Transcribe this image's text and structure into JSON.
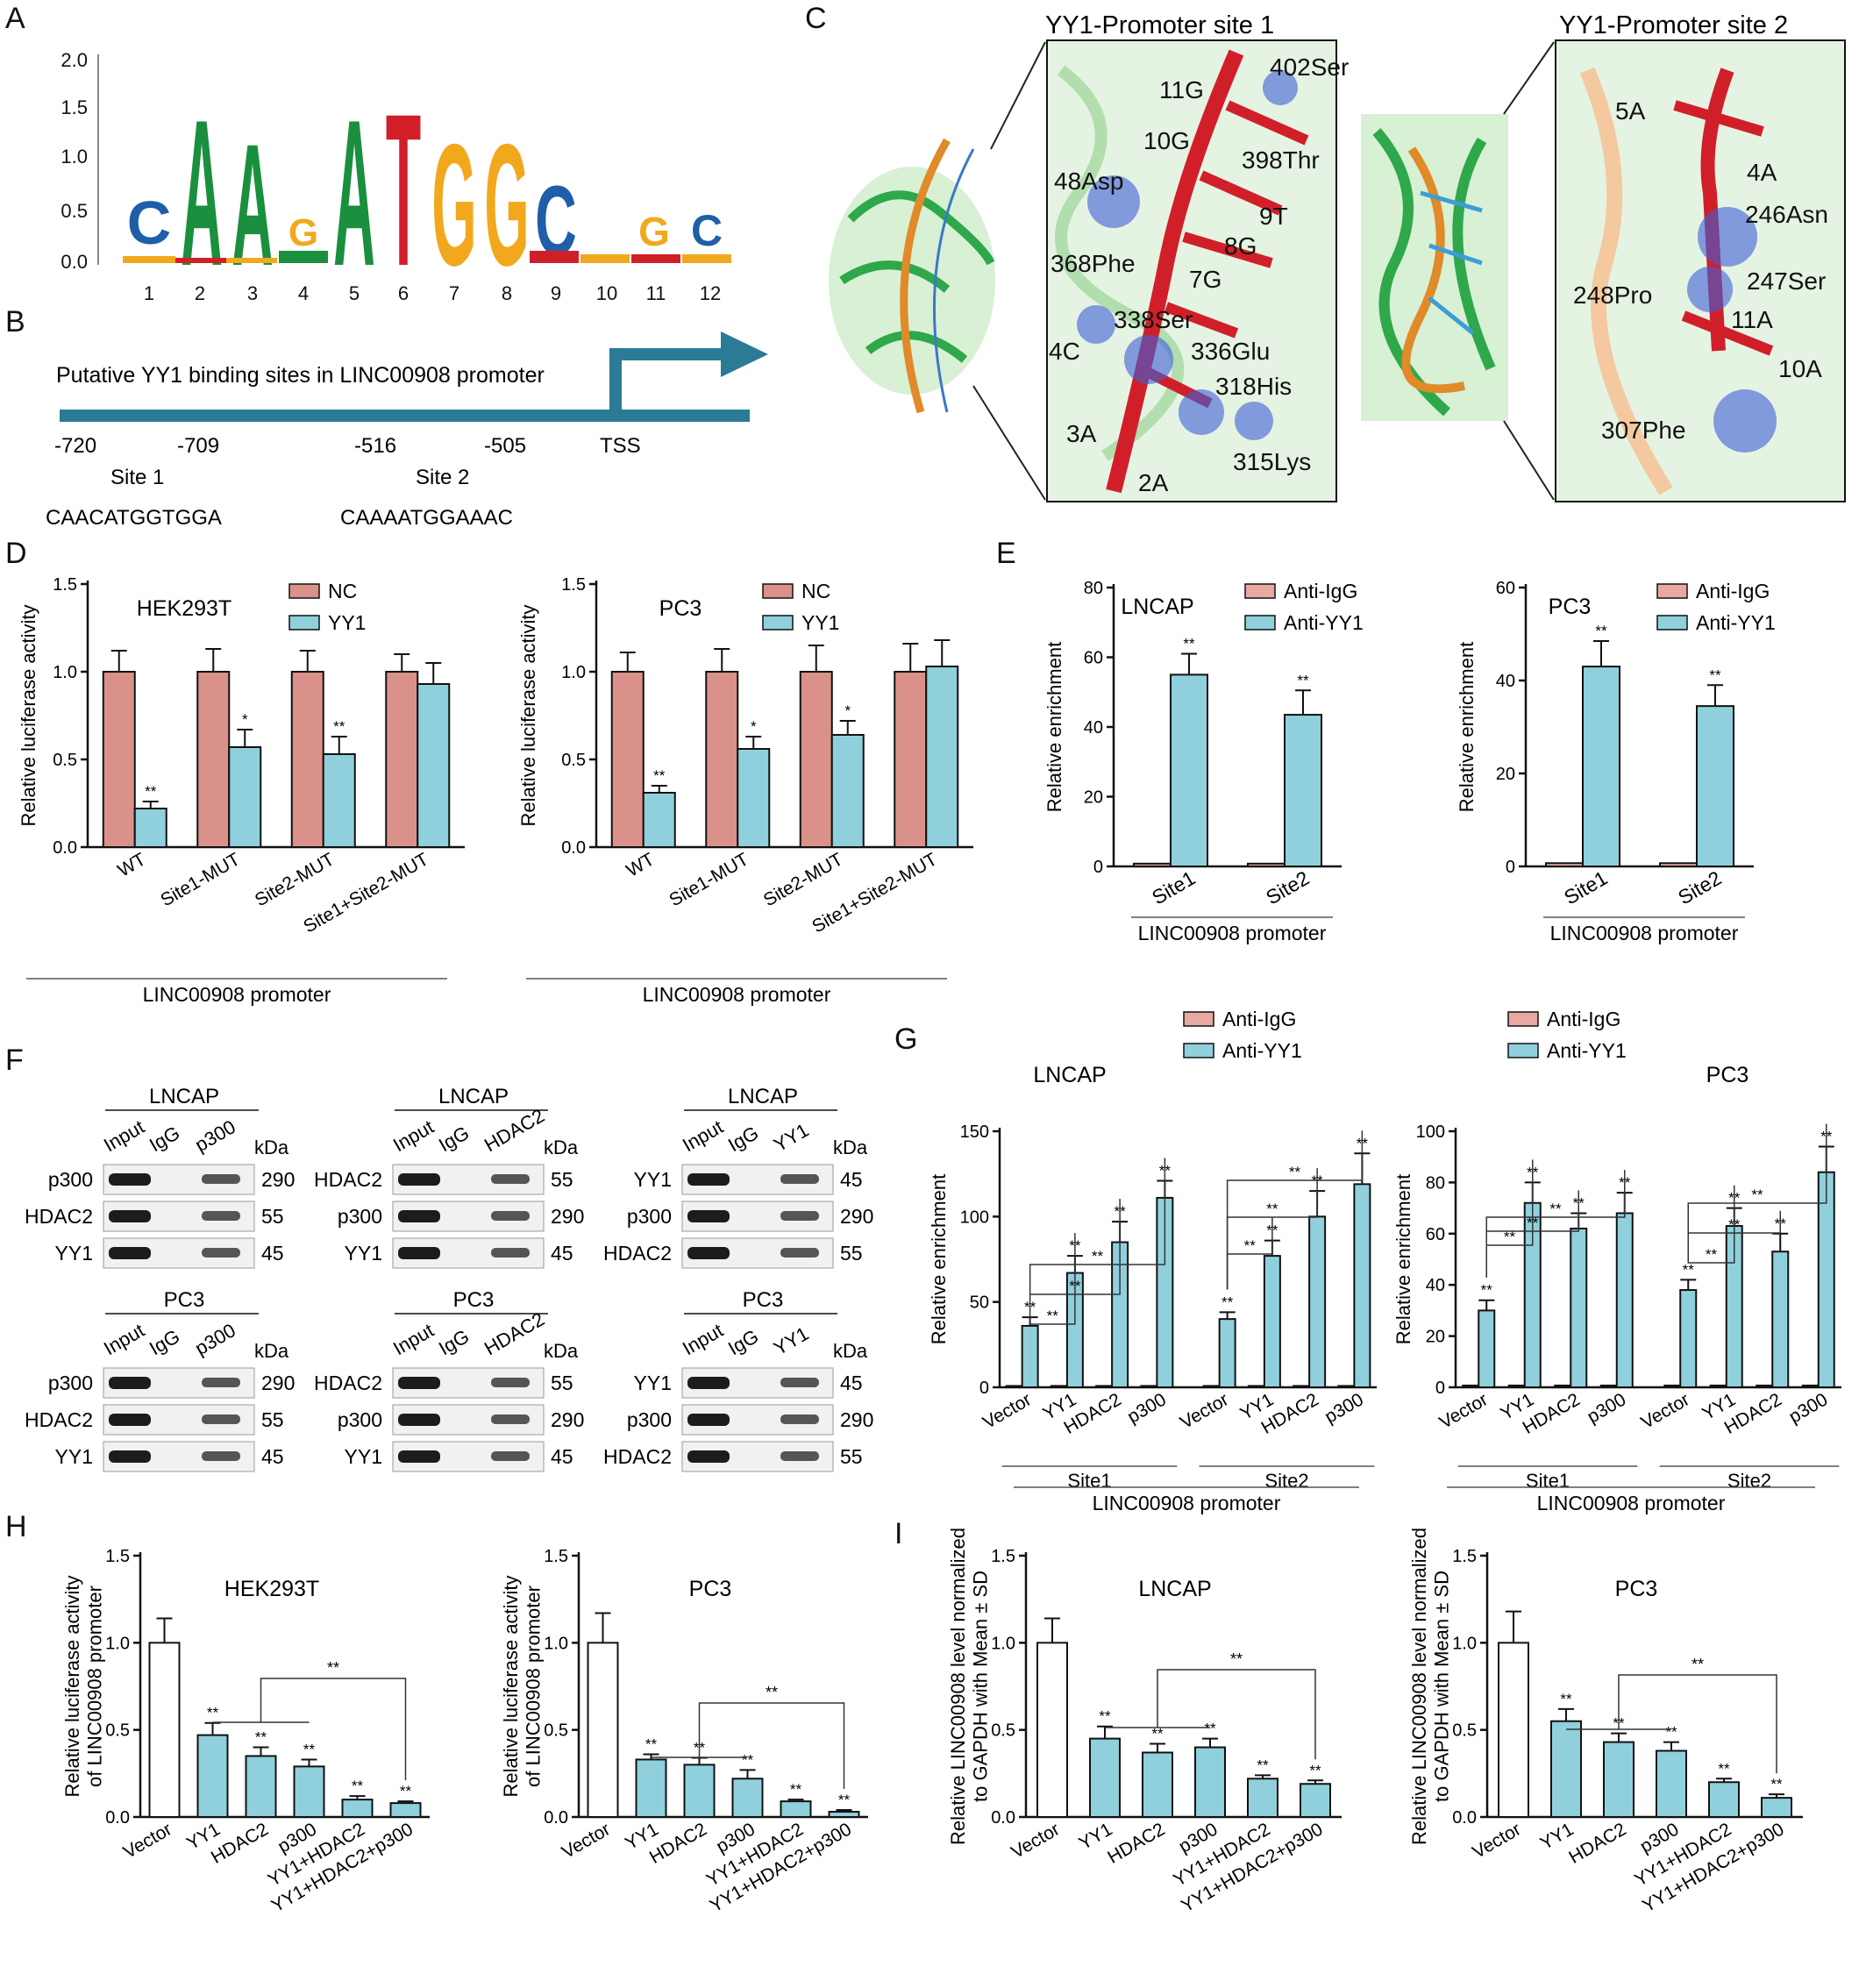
{
  "panel_labels": [
    "A",
    "B",
    "C",
    "D",
    "E",
    "F",
    "G",
    "H",
    "I"
  ],
  "colors": {
    "nc": "#d9918a",
    "yy1": "#8fd0dc",
    "igg": "#e7a9a2",
    "white": "#ffffff",
    "green": "#1a8f3e",
    "red": "#d11f2a",
    "orange": "#f2a81d",
    "blue": "#1f5ea8",
    "teal": "#2b7a96"
  },
  "panelA": {
    "yticks": [
      "0.0",
      "0.5",
      "1.0",
      "1.5",
      "2.0"
    ],
    "positions": [
      "1",
      "2",
      "3",
      "4",
      "5",
      "6",
      "7",
      "8",
      "9",
      "10",
      "11",
      "12"
    ],
    "main_letters": [
      "C",
      "A",
      "A",
      "G",
      "A",
      "T",
      "G",
      "G",
      "C",
      "",
      "G",
      "C"
    ]
  },
  "panelB": {
    "title": "Putative YY1 binding sites in LINC00908 promoter",
    "coords": [
      "-720",
      "-709",
      "-516",
      "-505",
      "TSS"
    ],
    "site1_label": "Site 1",
    "site2_label": "Site 2",
    "site1_seq": "CAACATGGTGGA",
    "site2_seq": "CAAAATGGAAAC"
  },
  "panelC": {
    "site1_title": "YY1-Promoter site 1",
    "site2_title": "YY1-Promoter site 2",
    "site1_labels": [
      "402Ser",
      "11G",
      "10G",
      "398Thr",
      "48Asp",
      "9T",
      "8G",
      "368Phe",
      "7G",
      "338Ser",
      "4C",
      "336Glu",
      "318His",
      "3A",
      "315Lys",
      "2A"
    ],
    "site2_labels": [
      "5A",
      "4A",
      "246Asn",
      "248Pro",
      "247Ser",
      "11A",
      "10A",
      "307Phe"
    ]
  },
  "chart_data": [
    {
      "id": "D1",
      "type": "bar",
      "title": "HEK293T",
      "ylabel": "Relative luciferase activity",
      "xlabel": "LINC00908 promoter",
      "ylim": [
        0,
        1.5
      ],
      "yticks": [
        "0.0",
        "0.5",
        "1.0",
        "1.5"
      ],
      "categories": [
        "WT",
        "Site1-MUT",
        "Site2-MUT",
        "Site1+Site2-MUT"
      ],
      "series": [
        {
          "name": "NC",
          "values": [
            1.0,
            1.0,
            1.0,
            1.0
          ],
          "err": [
            0.12,
            0.13,
            0.12,
            0.1
          ]
        },
        {
          "name": "YY1",
          "values": [
            0.22,
            0.57,
            0.53,
            0.93
          ],
          "err": [
            0.04,
            0.1,
            0.1,
            0.12
          ]
        }
      ],
      "sig": [
        "**",
        "*",
        "**",
        ""
      ]
    },
    {
      "id": "D2",
      "type": "bar",
      "title": "PC3",
      "ylabel": "Relative luciferase activity",
      "xlabel": "LINC00908 promoter",
      "ylim": [
        0,
        1.5
      ],
      "yticks": [
        "0.0",
        "0.5",
        "1.0",
        "1.5"
      ],
      "categories": [
        "WT",
        "Site1-MUT",
        "Site2-MUT",
        "Site1+Site2-MUT"
      ],
      "series": [
        {
          "name": "NC",
          "values": [
            1.0,
            1.0,
            1.0,
            1.0
          ],
          "err": [
            0.11,
            0.13,
            0.15,
            0.16
          ]
        },
        {
          "name": "YY1",
          "values": [
            0.31,
            0.56,
            0.64,
            1.03
          ],
          "err": [
            0.04,
            0.07,
            0.08,
            0.15
          ]
        }
      ],
      "sig": [
        "**",
        "*",
        "*",
        ""
      ]
    },
    {
      "id": "E1",
      "type": "bar",
      "title": "LNCAP",
      "ylabel": "Relative enrichment",
      "xlabel": "LINC00908 promoter",
      "ylim": [
        0,
        80
      ],
      "yticks": [
        "0",
        "20",
        "40",
        "60",
        "80"
      ],
      "categories": [
        "Site1",
        "Site2"
      ],
      "series": [
        {
          "name": "Anti-IgG",
          "values": [
            0.8,
            0.8
          ],
          "err": [
            0,
            0
          ]
        },
        {
          "name": "Anti-YY1",
          "values": [
            55,
            43.5
          ],
          "err": [
            6,
            7
          ]
        }
      ],
      "sig": [
        "**",
        "**"
      ]
    },
    {
      "id": "E2",
      "type": "bar",
      "title": "PC3",
      "ylabel": "Relative enrichment",
      "xlabel": "LINC00908 promoter",
      "ylim": [
        0,
        60
      ],
      "yticks": [
        "0",
        "20",
        "40",
        "60"
      ],
      "categories": [
        "Site1",
        "Site2"
      ],
      "series": [
        {
          "name": "Anti-IgG",
          "values": [
            0.7,
            0.7
          ],
          "err": [
            0,
            0
          ]
        },
        {
          "name": "Anti-YY1",
          "values": [
            43,
            34.5
          ],
          "err": [
            5.5,
            4.5
          ]
        }
      ],
      "sig": [
        "**",
        "**"
      ]
    },
    {
      "id": "G1",
      "type": "bar",
      "title": "LNCAP",
      "ylabel": "Relative enrichment",
      "xlabel": "LINC00908 promoter",
      "ylim": [
        0,
        150
      ],
      "yticks": [
        "0",
        "50",
        "100",
        "150"
      ],
      "categories": [
        "Vector",
        "YY1",
        "HDAC2",
        "p300",
        "Vector",
        "YY1",
        "HDAC2",
        "p300"
      ],
      "groups": [
        "Site1",
        "Site2"
      ],
      "series": [
        {
          "name": "Anti-IgG",
          "values": [
            0.8,
            0.8,
            0.8,
            0.8,
            0.8,
            0.8,
            0.8,
            0.8
          ],
          "err": [
            0,
            0,
            0,
            0,
            0,
            0,
            0,
            0
          ]
        },
        {
          "name": "Anti-YY1",
          "values": [
            36,
            67,
            85,
            111,
            40,
            77,
            100,
            119
          ],
          "err": [
            5,
            10,
            12,
            10,
            4,
            9,
            15,
            18
          ]
        }
      ],
      "sig": [
        "**",
        "**",
        "**",
        "**",
        "**",
        "**",
        "**",
        "**"
      ]
    },
    {
      "id": "G2",
      "type": "bar",
      "title": "PC3",
      "ylabel": "Relative enrichment",
      "xlabel": "LINC00908 promoter",
      "ylim": [
        0,
        100
      ],
      "yticks": [
        "0",
        "20",
        "40",
        "60",
        "80",
        "100"
      ],
      "categories": [
        "Vector",
        "YY1",
        "HDAC2",
        "p300",
        "Vector",
        "YY1",
        "HDAC2",
        "p300"
      ],
      "groups": [
        "Site1",
        "Site2"
      ],
      "series": [
        {
          "name": "Anti-IgG",
          "values": [
            0.7,
            0.7,
            0.7,
            0.7,
            0.7,
            0.7,
            0.7,
            0.7
          ],
          "err": [
            0,
            0,
            0,
            0,
            0,
            0,
            0,
            0
          ]
        },
        {
          "name": "Anti-YY1",
          "values": [
            30,
            72,
            62,
            68,
            38,
            63,
            53,
            84
          ],
          "err": [
            4,
            8,
            6,
            8,
            4,
            7,
            7,
            10
          ]
        }
      ],
      "sig": [
        "**",
        "**",
        "**",
        "**",
        "**",
        "**",
        "**",
        "**"
      ]
    },
    {
      "id": "H1",
      "type": "bar",
      "title": "HEK293T",
      "ylabel": "Relative luciferase activity of LINC00908 promoter",
      "ylim": [
        0,
        1.5
      ],
      "yticks": [
        "0.0",
        "0.5",
        "1.0",
        "1.5"
      ],
      "categories": [
        "Vector",
        "YY1",
        "HDAC2",
        "p300",
        "YY1+HDAC2",
        "YY1+HDAC2+p300"
      ],
      "series": [
        {
          "name": "",
          "values": [
            1.0,
            0.47,
            0.35,
            0.29,
            0.1,
            0.08
          ],
          "err": [
            0.14,
            0.07,
            0.05,
            0.04,
            0.02,
            0.01
          ]
        }
      ],
      "sig": [
        "",
        "**",
        "**",
        "**",
        "**",
        "**"
      ]
    },
    {
      "id": "H2",
      "type": "bar",
      "title": "PC3",
      "ylabel": "Relative luciferase activity of LINC00908 promoter",
      "ylim": [
        0,
        1.5
      ],
      "yticks": [
        "0.0",
        "0.5",
        "1.0",
        "1.5"
      ],
      "categories": [
        "Vector",
        "YY1",
        "HDAC2",
        "p300",
        "YY1+HDAC2",
        "YY1+HDAC2+p300"
      ],
      "series": [
        {
          "name": "",
          "values": [
            1.0,
            0.33,
            0.3,
            0.22,
            0.09,
            0.03
          ],
          "err": [
            0.17,
            0.03,
            0.04,
            0.05,
            0.01,
            0.01
          ]
        }
      ],
      "sig": [
        "",
        "**",
        "**",
        "**",
        "**",
        "**"
      ]
    },
    {
      "id": "I1",
      "type": "bar",
      "title": "LNCAP",
      "ylabel": "Relative LINC00908 level normalized to GAPDH with Mean ± SD",
      "ylim": [
        0,
        1.5
      ],
      "yticks": [
        "0.0",
        "0.5",
        "1.0",
        "1.5"
      ],
      "categories": [
        "Vector",
        "YY1",
        "HDAC2",
        "p300",
        "YY1+HDAC2",
        "YY1+HDAC2+p300"
      ],
      "series": [
        {
          "name": "",
          "values": [
            1.0,
            0.45,
            0.37,
            0.4,
            0.22,
            0.19
          ],
          "err": [
            0.14,
            0.07,
            0.05,
            0.05,
            0.02,
            0.02
          ]
        }
      ],
      "sig": [
        "",
        "**",
        "**",
        "**",
        "**",
        "**"
      ]
    },
    {
      "id": "I2",
      "type": "bar",
      "title": "PC3",
      "ylabel": "Relative LINC00908 level normalized to GAPDH with Mean ± SD",
      "ylim": [
        0,
        1.5
      ],
      "yticks": [
        "0.0",
        "0.5",
        "1.0",
        "1.5"
      ],
      "categories": [
        "Vector",
        "YY1",
        "HDAC2",
        "p300",
        "YY1+HDAC2",
        "YY1+HDAC2+p300"
      ],
      "series": [
        {
          "name": "",
          "values": [
            1.0,
            0.55,
            0.43,
            0.38,
            0.2,
            0.11
          ],
          "err": [
            0.18,
            0.07,
            0.05,
            0.05,
            0.02,
            0.02
          ]
        }
      ],
      "sig": [
        "",
        "**",
        "**",
        "**",
        "**",
        "**"
      ]
    }
  ],
  "panelF": {
    "blots": [
      {
        "cell": "LNCAP",
        "lanes": [
          "Input",
          "IgG",
          "p300"
        ],
        "rows": [
          [
            "p300",
            "290"
          ],
          [
            "HDAC2",
            "55"
          ],
          [
            "YY1",
            "45"
          ]
        ]
      },
      {
        "cell": "LNCAP",
        "lanes": [
          "Input",
          "IgG",
          "HDAC2"
        ],
        "rows": [
          [
            "HDAC2",
            "55"
          ],
          [
            "p300",
            "290"
          ],
          [
            "YY1",
            "45"
          ]
        ]
      },
      {
        "cell": "LNCAP",
        "lanes": [
          "Input",
          "IgG",
          "YY1"
        ],
        "rows": [
          [
            "YY1",
            "45"
          ],
          [
            "p300",
            "290"
          ],
          [
            "HDAC2",
            "55"
          ]
        ]
      },
      {
        "cell": "PC3",
        "lanes": [
          "Input",
          "IgG",
          "p300"
        ],
        "rows": [
          [
            "p300",
            "290"
          ],
          [
            "HDAC2",
            "55"
          ],
          [
            "YY1",
            "45"
          ]
        ]
      },
      {
        "cell": "PC3",
        "lanes": [
          "Input",
          "IgG",
          "HDAC2"
        ],
        "rows": [
          [
            "HDAC2",
            "55"
          ],
          [
            "p300",
            "290"
          ],
          [
            "YY1",
            "45"
          ]
        ]
      },
      {
        "cell": "PC3",
        "lanes": [
          "Input",
          "IgG",
          "YY1"
        ],
        "rows": [
          [
            "YY1",
            "45"
          ],
          [
            "p300",
            "290"
          ],
          [
            "HDAC2",
            "55"
          ]
        ]
      }
    ],
    "kda": "kDa"
  }
}
